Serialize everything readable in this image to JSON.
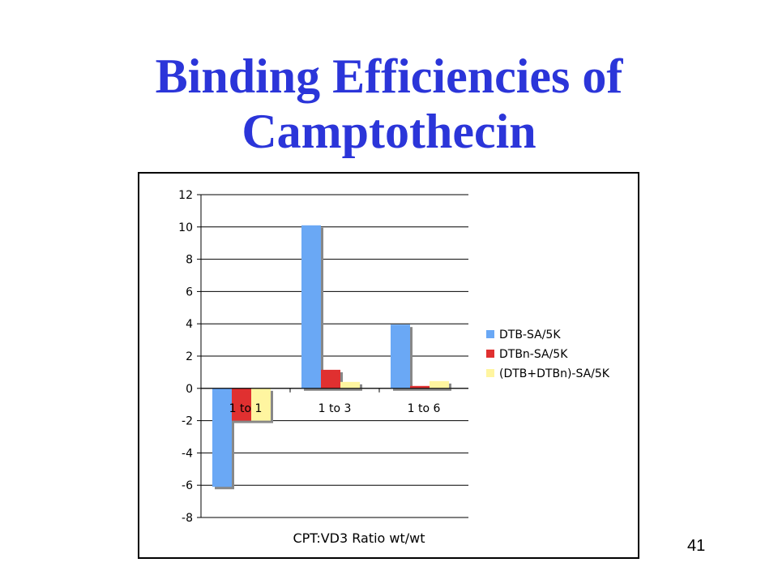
{
  "slide": {
    "title": "Binding Efficiencies of Camptothecin",
    "page_number": "41"
  },
  "chart_data": {
    "type": "bar",
    "categories": [
      "1 to 1",
      "1 to 3",
      "1 to 6"
    ],
    "series": [
      {
        "name": "DTB-SA/5K",
        "values": [
          -6.1,
          10.1,
          3.95
        ],
        "color": "#6aa8f5"
      },
      {
        "name": "DTBn-SA/5K",
        "values": [
          -2.0,
          1.15,
          0.15
        ],
        "color": "#e03030"
      },
      {
        "name": "(DTB+DTBn)-SA/5K",
        "values": [
          -2.0,
          0.4,
          0.45
        ],
        "color": "#fff5a0"
      }
    ],
    "title": "",
    "xlabel": "CPT:VD3 Ratio wt/wt",
    "ylabel": "",
    "ylim": [
      -8,
      12
    ],
    "yticks": [
      12,
      10,
      8,
      6,
      4,
      2,
      0,
      -2,
      -4,
      -6,
      -8
    ],
    "grid": true,
    "legend_position": "right"
  }
}
